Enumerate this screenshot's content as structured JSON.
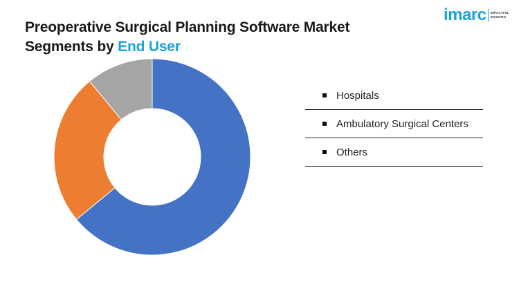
{
  "header": {
    "title_line1": "Preoperative Surgical Planning Software Market",
    "title_line2_prefix": "Segments by ",
    "title_line2_accent": "End User"
  },
  "logo": {
    "word": "imarc",
    "tag_line1": "IMPACTFUL",
    "tag_line2": "INSIGHTS"
  },
  "colors": {
    "accent": "#1aa3d9",
    "hospitals": "#4472c4",
    "ambulatory": "#ed7d31",
    "others": "#a5a5a5"
  },
  "chart_data": {
    "type": "pie",
    "donut": true,
    "title": "",
    "categories": [
      "Hospitals",
      "Ambulatory Surgical Centers",
      "Others"
    ],
    "values": [
      64,
      25,
      11
    ],
    "colors": [
      "#4472c4",
      "#ed7d31",
      "#a5a5a5"
    ],
    "legend_position": "right"
  }
}
